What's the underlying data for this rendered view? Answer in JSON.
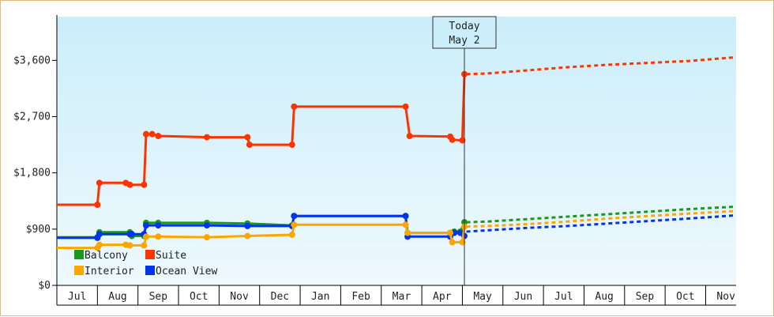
{
  "chart_data": {
    "type": "line",
    "title": "",
    "xlabel": "",
    "ylabel": "",
    "ylim": [
      0,
      4300
    ],
    "y_ticks": [
      {
        "value": 0,
        "label": "$0"
      },
      {
        "value": 900,
        "label": "$900"
      },
      {
        "value": 1800,
        "label": "$1,800"
      },
      {
        "value": 2700,
        "label": "$2,700"
      },
      {
        "value": 3600,
        "label": "$3,600"
      }
    ],
    "x_months": [
      "Jul",
      "Aug",
      "Sep",
      "Oct",
      "Nov",
      "Dec",
      "Jan",
      "Feb",
      "Mar",
      "Apr",
      "May",
      "Jun",
      "Jul",
      "Aug",
      "Sep",
      "Oct",
      "Nov"
    ],
    "x_domain_months": [
      -0.5,
      16.25
    ],
    "today": {
      "label_line1": "Today",
      "label_line2": "May 2",
      "x": 9.55
    },
    "grid": false,
    "background": [
      "#cbeefa",
      "#eef9fd"
    ],
    "legend": {
      "position": "bottom-left",
      "entries": [
        {
          "name": "Balcony",
          "color": "#1a9a1a"
        },
        {
          "name": "Suite",
          "color": "#ff3300"
        },
        {
          "name": "Interior",
          "color": "#ffa500"
        },
        {
          "name": "Ocean View",
          "color": "#0033ee"
        }
      ]
    },
    "series": [
      {
        "name": "Suite",
        "color": "#ff3300",
        "points": [
          [
            -0.5,
            1290
          ],
          [
            0.5,
            1290
          ],
          [
            0.55,
            1640
          ],
          [
            1.2,
            1640
          ],
          [
            1.3,
            1610
          ],
          [
            1.65,
            1610
          ],
          [
            1.7,
            2420
          ],
          [
            1.85,
            2420
          ],
          [
            2.0,
            2390
          ],
          [
            3.2,
            2370
          ],
          [
            4.2,
            2370
          ],
          [
            4.25,
            2250
          ],
          [
            5.3,
            2250
          ],
          [
            5.35,
            2860
          ],
          [
            8.1,
            2860
          ],
          [
            8.2,
            2390
          ],
          [
            9.2,
            2380
          ],
          [
            9.25,
            2330
          ],
          [
            9.5,
            2320
          ],
          [
            9.55,
            3380
          ]
        ],
        "projection": [
          [
            9.6,
            3380
          ],
          [
            10.1,
            3390
          ],
          [
            11.1,
            3440
          ],
          [
            12.1,
            3490
          ],
          [
            13.1,
            3530
          ],
          [
            14.1,
            3560
          ],
          [
            15.1,
            3590
          ],
          [
            16.25,
            3650
          ]
        ]
      },
      {
        "name": "Balcony",
        "color": "#1a9a1a",
        "points": [
          [
            -0.5,
            770
          ],
          [
            0.5,
            770
          ],
          [
            0.55,
            850
          ],
          [
            1.3,
            850
          ],
          [
            1.35,
            790
          ],
          [
            1.65,
            790
          ],
          [
            1.7,
            1000
          ],
          [
            2.0,
            1000
          ],
          [
            3.2,
            1000
          ],
          [
            4.2,
            990
          ],
          [
            5.3,
            960
          ],
          [
            5.35,
            1110
          ],
          [
            8.1,
            1110
          ],
          [
            8.15,
            840
          ],
          [
            9.2,
            840
          ],
          [
            9.3,
            860
          ],
          [
            9.45,
            860
          ],
          [
            9.55,
            1010
          ]
        ],
        "projection": [
          [
            9.6,
            1010
          ],
          [
            10.1,
            1020
          ],
          [
            11.1,
            1060
          ],
          [
            12.1,
            1100
          ],
          [
            13.1,
            1140
          ],
          [
            14.1,
            1180
          ],
          [
            15.1,
            1220
          ],
          [
            16.25,
            1260
          ]
        ]
      },
      {
        "name": "Ocean View",
        "color": "#0033ee",
        "points": [
          [
            -0.5,
            760
          ],
          [
            0.5,
            760
          ],
          [
            0.55,
            820
          ],
          [
            1.3,
            820
          ],
          [
            1.35,
            820
          ],
          [
            1.65,
            820
          ],
          [
            1.7,
            960
          ],
          [
            2.0,
            960
          ],
          [
            3.2,
            960
          ],
          [
            4.2,
            950
          ],
          [
            5.3,
            950
          ],
          [
            5.35,
            1110
          ],
          [
            8.1,
            1110
          ],
          [
            8.15,
            780
          ],
          [
            9.2,
            780
          ],
          [
            9.3,
            840
          ],
          [
            9.45,
            840
          ],
          [
            9.55,
            790
          ]
        ],
        "projection": [
          [
            9.6,
            860
          ],
          [
            10.1,
            880
          ],
          [
            11.1,
            920
          ],
          [
            12.1,
            950
          ],
          [
            13.1,
            990
          ],
          [
            14.1,
            1030
          ],
          [
            15.1,
            1070
          ],
          [
            16.25,
            1120
          ]
        ]
      },
      {
        "name": "Interior",
        "color": "#ffa500",
        "points": [
          [
            -0.5,
            600
          ],
          [
            0.5,
            600
          ],
          [
            0.55,
            650
          ],
          [
            1.2,
            650
          ],
          [
            1.3,
            640
          ],
          [
            1.65,
            640
          ],
          [
            1.7,
            780
          ],
          [
            2.0,
            780
          ],
          [
            3.2,
            770
          ],
          [
            4.2,
            790
          ],
          [
            5.3,
            810
          ],
          [
            5.35,
            970
          ],
          [
            8.1,
            970
          ],
          [
            8.15,
            840
          ],
          [
            9.2,
            840
          ],
          [
            9.25,
            690
          ],
          [
            9.5,
            690
          ],
          [
            9.55,
            940
          ]
        ],
        "projection": [
          [
            9.6,
            940
          ],
          [
            10.1,
            950
          ],
          [
            11.1,
            980
          ],
          [
            12.1,
            1020
          ],
          [
            13.1,
            1070
          ],
          [
            14.1,
            1110
          ],
          [
            15.1,
            1150
          ],
          [
            16.25,
            1190
          ]
        ]
      }
    ]
  }
}
